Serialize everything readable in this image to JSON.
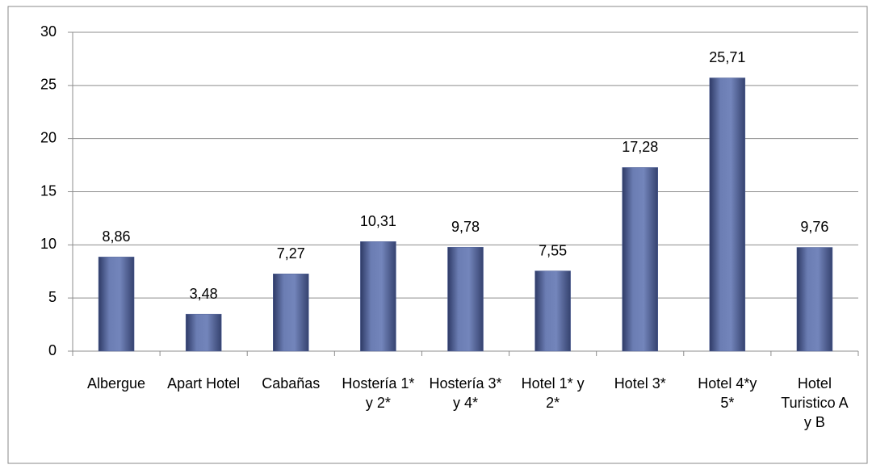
{
  "chart_data": {
    "type": "bar",
    "categories": [
      "Albergue",
      "Apart Hotel",
      "Cabañas",
      "Hostería 1* y 2*",
      "Hostería 3* y 4*",
      "Hotel 1* y 2*",
      "Hotel 3*",
      "Hotel 4*y 5*",
      "Hotel Turistico A y B"
    ],
    "values": [
      8.86,
      3.48,
      7.27,
      10.31,
      9.78,
      7.55,
      17.28,
      25.71,
      9.76
    ],
    "value_labels": [
      "8,86",
      "3,48",
      "7,27",
      "10,31",
      "9,78",
      "7,55",
      "17,28",
      "25,71",
      "9,76"
    ],
    "color": "#4f6198",
    "ylim": [
      0,
      30
    ],
    "yticks": [
      0,
      5,
      10,
      15,
      20,
      25,
      30
    ],
    "grid": true
  }
}
